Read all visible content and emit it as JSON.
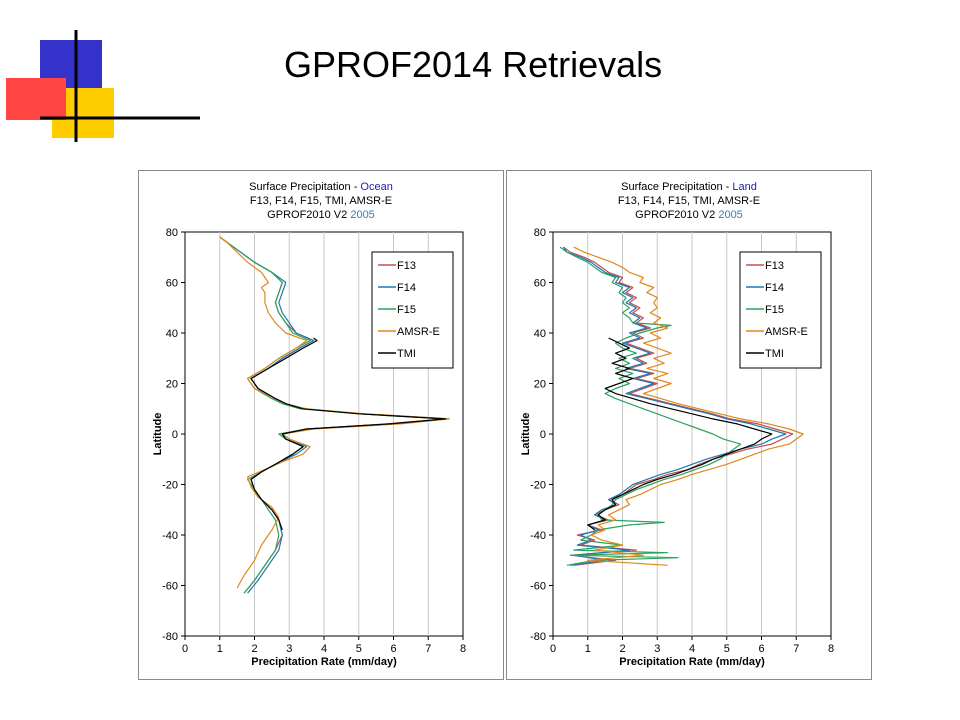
{
  "slide": {
    "title": "GPROF2014 Retrievals"
  },
  "colors": {
    "deco_blue": "#3333cc",
    "deco_yellow": "#ffcc00",
    "deco_red": "#ff4444",
    "series": [
      "#c0504d",
      "#1f78b4",
      "#2ca25f",
      "#e0891b",
      "#000000"
    ]
  },
  "chart_data": [
    {
      "type": "line",
      "title_prefix": "Surface Precipitation - ",
      "title_highlight": "Ocean",
      "title_line2": "F13, F14, F15, TMI, AMSR-E",
      "title_line3_prefix": "GPROF2010 V2  ",
      "title_line3_year": "2005",
      "xlabel": "Precipitation Rate (mm/day)",
      "ylabel": "Latitude",
      "xlim": [
        0,
        8
      ],
      "ylim": [
        -80,
        80
      ],
      "xticks": [
        0,
        1,
        2,
        3,
        4,
        5,
        6,
        7,
        8
      ],
      "yticks": [
        80,
        60,
        40,
        20,
        0,
        -20,
        -40,
        -60,
        -80
      ],
      "legend_position": "top-right",
      "grid": true,
      "series": [
        {
          "name": "F13",
          "color": "#c0504d",
          "lat": [
            -63,
            -58,
            -52,
            -46,
            -40,
            -34,
            -30,
            -26,
            -22,
            -18,
            -15,
            -12,
            -8,
            -5,
            -2,
            0,
            2,
            4,
            6,
            8,
            10,
            12,
            14,
            18,
            22,
            26,
            30,
            34,
            37,
            40,
            44,
            48,
            52,
            56,
            60,
            64,
            68,
            72,
            76,
            78
          ],
          "rate": [
            1.7,
            2.0,
            2.3,
            2.6,
            2.8,
            2.7,
            2.5,
            2.2,
            2.0,
            1.9,
            2.2,
            2.6,
            3.1,
            3.4,
            2.9,
            2.8,
            3.5,
            5.8,
            7.5,
            5.0,
            3.4,
            2.9,
            2.6,
            2.1,
            1.9,
            2.4,
            2.8,
            3.3,
            3.7,
            3.2,
            2.9,
            2.7,
            2.6,
            2.7,
            2.8,
            2.5,
            2.0,
            1.6,
            1.2,
            1.0
          ]
        },
        {
          "name": "F14",
          "color": "#1f78b4",
          "lat": [
            -63,
            -58,
            -52,
            -46,
            -40,
            -34,
            -30,
            -26,
            -22,
            -18,
            -15,
            -12,
            -8,
            -5,
            -2,
            0,
            2,
            4,
            6,
            8,
            10,
            12,
            14,
            18,
            22,
            26,
            30,
            34,
            37,
            40,
            44,
            48,
            52,
            56,
            60,
            64,
            68,
            72,
            76,
            78
          ],
          "rate": [
            1.8,
            2.1,
            2.4,
            2.7,
            2.8,
            2.7,
            2.5,
            2.2,
            2.0,
            1.9,
            2.2,
            2.6,
            3.2,
            3.5,
            3.0,
            2.8,
            3.6,
            6.0,
            7.6,
            5.1,
            3.4,
            2.9,
            2.6,
            2.1,
            1.9,
            2.4,
            2.8,
            3.3,
            3.7,
            3.2,
            3.0,
            2.8,
            2.7,
            2.8,
            2.9,
            2.5,
            2.0,
            1.6,
            1.2,
            1.0
          ]
        },
        {
          "name": "F15",
          "color": "#2ca25f",
          "lat": [
            -63,
            -58,
            -52,
            -46,
            -40,
            -34,
            -30,
            -26,
            -22,
            -18,
            -15,
            -12,
            -8,
            -5,
            -2,
            0,
            2,
            4,
            6,
            8,
            10,
            12,
            14,
            18,
            22,
            26,
            30,
            34,
            37,
            40,
            44,
            48,
            52,
            56,
            60,
            64,
            68,
            72,
            76,
            78
          ],
          "rate": [
            1.7,
            2.0,
            2.3,
            2.6,
            2.7,
            2.6,
            2.4,
            2.2,
            2.0,
            1.8,
            2.2,
            2.6,
            3.1,
            3.4,
            2.9,
            2.7,
            3.5,
            5.9,
            7.5,
            5.0,
            3.3,
            2.8,
            2.5,
            2.0,
            1.8,
            2.3,
            2.7,
            3.2,
            3.6,
            3.1,
            2.9,
            2.7,
            2.6,
            2.7,
            2.8,
            2.5,
            2.0,
            1.6,
            1.2,
            1.0
          ]
        },
        {
          "name": "AMSR-E",
          "color": "#e0891b",
          "lat": [
            -61,
            -56,
            -50,
            -44,
            -38,
            -33,
            -29,
            -25,
            -21,
            -17,
            -14,
            -11,
            -8,
            -5,
            -2,
            0,
            2,
            4,
            6,
            8,
            10,
            12,
            14,
            18,
            22,
            26,
            30,
            34,
            37,
            40,
            44,
            48,
            52,
            56,
            58,
            60,
            64,
            68,
            72,
            76,
            78
          ],
          "rate": [
            1.5,
            1.7,
            2.0,
            2.2,
            2.5,
            2.7,
            2.5,
            2.1,
            1.9,
            1.8,
            2.3,
            2.8,
            3.4,
            3.6,
            3.0,
            2.8,
            3.7,
            6.2,
            7.6,
            5.2,
            3.5,
            2.9,
            2.6,
            2.0,
            1.8,
            2.3,
            2.7,
            3.2,
            3.5,
            2.9,
            2.6,
            2.4,
            2.3,
            2.3,
            2.2,
            2.4,
            2.2,
            1.8,
            1.5,
            1.2,
            1.0
          ]
        },
        {
          "name": "TMI",
          "color": "#000000",
          "lat": [
            -38,
            -34,
            -30,
            -26,
            -22,
            -18,
            -15,
            -12,
            -8,
            -5,
            -2,
            0,
            2,
            4,
            6,
            8,
            10,
            12,
            14,
            18,
            22,
            26,
            30,
            34,
            37,
            38
          ],
          "rate": [
            2.8,
            2.7,
            2.5,
            2.2,
            2.0,
            1.9,
            2.2,
            2.6,
            3.1,
            3.4,
            2.9,
            2.8,
            3.5,
            5.9,
            7.5,
            5.0,
            3.4,
            2.9,
            2.6,
            2.1,
            1.9,
            2.4,
            2.9,
            3.4,
            3.8,
            3.7
          ]
        }
      ]
    },
    {
      "type": "line",
      "title_prefix": "Surface Precipitation - ",
      "title_highlight": "Land",
      "title_line2": "F13, F14, F15, TMI, AMSR-E",
      "title_line3_prefix": "GPROF2010 V2  ",
      "title_line3_year": "2005",
      "xlabel": "Precipitation Rate (mm/day)",
      "ylabel": "Latitude",
      "xlim": [
        0,
        8
      ],
      "ylim": [
        -80,
        80
      ],
      "xticks": [
        0,
        1,
        2,
        3,
        4,
        5,
        6,
        7,
        8
      ],
      "yticks": [
        80,
        60,
        40,
        20,
        0,
        -20,
        -40,
        -60,
        -80
      ],
      "legend_position": "top-right",
      "grid": true,
      "series": [
        {
          "name": "F13",
          "color": "#c0504d",
          "lat": [
            -52,
            -50,
            -48,
            -46,
            -44,
            -42,
            -40,
            -38,
            -36,
            -34,
            -32,
            -30,
            -28,
            -26,
            -24,
            -22,
            -20,
            -18,
            -16,
            -14,
            -12,
            -10,
            -8,
            -6,
            -4,
            -2,
            0,
            2,
            4,
            6,
            8,
            10,
            12,
            14,
            16,
            18,
            20,
            22,
            24,
            26,
            28,
            30,
            32,
            34,
            36,
            38,
            40,
            42,
            44,
            46,
            48,
            50,
            52,
            54,
            56,
            58,
            60,
            62,
            64,
            66,
            68,
            70,
            72,
            74
          ],
          "rate": [
            0.6,
            1.8,
            0.5,
            2.4,
            0.8,
            1.2,
            0.7,
            1.4,
            1.0,
            1.6,
            1.2,
            1.5,
            1.9,
            1.6,
            2.0,
            2.2,
            2.4,
            2.9,
            3.3,
            3.9,
            4.2,
            4.6,
            5.1,
            5.6,
            6.3,
            6.6,
            6.9,
            6.4,
            5.9,
            5.1,
            4.6,
            4.0,
            3.4,
            2.8,
            2.2,
            2.6,
            3.0,
            2.4,
            2.9,
            2.2,
            2.7,
            2.4,
            2.9,
            2.5,
            2.1,
            2.6,
            2.3,
            2.8,
            2.4,
            2.6,
            2.3,
            2.5,
            2.2,
            2.4,
            2.1,
            2.3,
            1.9,
            2.0,
            1.6,
            1.4,
            1.2,
            0.9,
            0.5,
            0.3
          ]
        },
        {
          "name": "F14",
          "color": "#1f78b4",
          "lat": [
            -52,
            -50,
            -48,
            -46,
            -44,
            -42,
            -40,
            -38,
            -36,
            -34,
            -32,
            -30,
            -28,
            -26,
            -24,
            -22,
            -20,
            -18,
            -16,
            -14,
            -12,
            -10,
            -8,
            -6,
            -4,
            -2,
            0,
            2,
            4,
            6,
            8,
            10,
            12,
            14,
            16,
            18,
            20,
            22,
            24,
            26,
            28,
            30,
            32,
            34,
            36,
            38,
            40,
            42,
            44,
            46,
            48,
            50,
            52,
            54,
            56,
            58,
            60,
            62,
            64,
            66,
            68,
            70,
            72,
            74
          ],
          "rate": [
            0.5,
            1.5,
            0.6,
            2.2,
            0.7,
            1.1,
            0.8,
            1.3,
            1.0,
            1.5,
            1.2,
            1.4,
            1.8,
            1.6,
            1.9,
            2.1,
            2.3,
            2.7,
            3.1,
            3.6,
            4.0,
            4.4,
            4.9,
            5.4,
            6.0,
            6.3,
            6.7,
            6.2,
            5.7,
            5.0,
            4.5,
            3.9,
            3.3,
            2.7,
            2.1,
            2.5,
            2.9,
            2.3,
            2.8,
            2.1,
            2.6,
            2.3,
            2.8,
            2.4,
            2.0,
            2.5,
            2.2,
            2.7,
            2.3,
            2.5,
            2.2,
            2.4,
            2.1,
            2.3,
            2.0,
            2.2,
            1.8,
            1.9,
            1.5,
            1.3,
            1.1,
            0.8,
            0.4,
            0.3
          ]
        },
        {
          "name": "F15",
          "color": "#2ca25f",
          "lat": [
            -52,
            -50,
            -49,
            -48,
            -47,
            -46,
            -44,
            -42,
            -40,
            -38,
            -36,
            -35,
            -34,
            -32,
            -30,
            -28,
            -26,
            -24,
            -22,
            -20,
            -18,
            -16,
            -14,
            -12,
            -10,
            -8,
            -6,
            -4,
            -2,
            0,
            2,
            4,
            6,
            8,
            10,
            12,
            14,
            16,
            18,
            20,
            22,
            24,
            26,
            28,
            30,
            32,
            34,
            36,
            38,
            40,
            42,
            43,
            44,
            46,
            48,
            50,
            52,
            54,
            56,
            58,
            60,
            62,
            64,
            66,
            68,
            70,
            72,
            74
          ],
          "rate": [
            0.4,
            1.2,
            3.6,
            0.5,
            3.3,
            0.6,
            2.0,
            0.8,
            1.1,
            1.3,
            2.2,
            3.2,
            1.4,
            1.3,
            1.5,
            1.7,
            1.8,
            2.1,
            2.4,
            2.8,
            3.2,
            3.7,
            4.1,
            4.5,
            4.8,
            5.0,
            5.2,
            5.4,
            4.9,
            4.6,
            4.2,
            3.8,
            3.4,
            3.0,
            2.6,
            2.2,
            1.8,
            1.5,
            1.8,
            2.2,
            1.9,
            2.3,
            1.8,
            2.2,
            1.9,
            2.4,
            2.0,
            1.8,
            2.1,
            2.5,
            3.0,
            3.4,
            2.3,
            2.2,
            2.0,
            2.2,
            2.0,
            2.1,
            1.9,
            2.0,
            1.7,
            1.8,
            1.4,
            1.2,
            1.0,
            0.7,
            0.4,
            0.2
          ]
        },
        {
          "name": "AMSR-E",
          "color": "#e0891b",
          "lat": [
            -52,
            -50,
            -48,
            -46,
            -44,
            -42,
            -40,
            -38,
            -36,
            -34,
            -32,
            -30,
            -28,
            -26,
            -24,
            -22,
            -20,
            -18,
            -16,
            -14,
            -12,
            -10,
            -8,
            -6,
            -4,
            -2,
            0,
            2,
            4,
            6,
            8,
            10,
            12,
            14,
            16,
            18,
            20,
            22,
            24,
            26,
            28,
            30,
            32,
            34,
            36,
            38,
            40,
            42,
            44,
            46,
            48,
            50,
            52,
            54,
            56,
            58,
            60,
            62,
            64,
            66,
            68,
            70,
            72,
            74
          ],
          "rate": [
            3.3,
            1.0,
            2.6,
            1.2,
            2.0,
            1.4,
            1.1,
            1.5,
            1.3,
            1.8,
            1.6,
            1.9,
            2.2,
            2.1,
            2.5,
            2.8,
            3.1,
            3.6,
            4.0,
            4.5,
            5.0,
            5.4,
            5.8,
            6.2,
            6.8,
            7.0,
            7.2,
            6.8,
            6.2,
            5.4,
            4.8,
            4.2,
            3.6,
            3.1,
            2.6,
            3.0,
            3.4,
            2.9,
            3.3,
            2.7,
            3.2,
            2.9,
            3.4,
            3.0,
            2.6,
            3.1,
            2.8,
            3.3,
            2.9,
            3.1,
            2.8,
            3.0,
            2.9,
            3.0,
            2.7,
            2.9,
            2.5,
            2.6,
            2.2,
            2.0,
            1.7,
            1.3,
            0.9,
            0.6
          ]
        },
        {
          "name": "TMI",
          "color": "#000000",
          "lat": [
            -38,
            -36,
            -34,
            -32,
            -30,
            -28,
            -26,
            -24,
            -22,
            -20,
            -18,
            -16,
            -14,
            -12,
            -10,
            -8,
            -6,
            -4,
            -2,
            0,
            2,
            4,
            6,
            8,
            10,
            12,
            14,
            16,
            18,
            20,
            22,
            24,
            26,
            28,
            30,
            32,
            34,
            36,
            38
          ],
          "rate": [
            1.2,
            1.0,
            1.5,
            1.3,
            1.5,
            1.8,
            1.7,
            2.0,
            2.3,
            2.6,
            3.0,
            3.5,
            3.9,
            4.3,
            4.6,
            5.0,
            5.4,
            5.8,
            6.0,
            6.3,
            5.8,
            5.3,
            4.6,
            4.0,
            3.4,
            2.8,
            2.3,
            1.8,
            1.5,
            1.9,
            2.3,
            1.8,
            2.2,
            1.7,
            2.1,
            1.8,
            2.2,
            1.9,
            1.6
          ]
        }
      ]
    }
  ]
}
